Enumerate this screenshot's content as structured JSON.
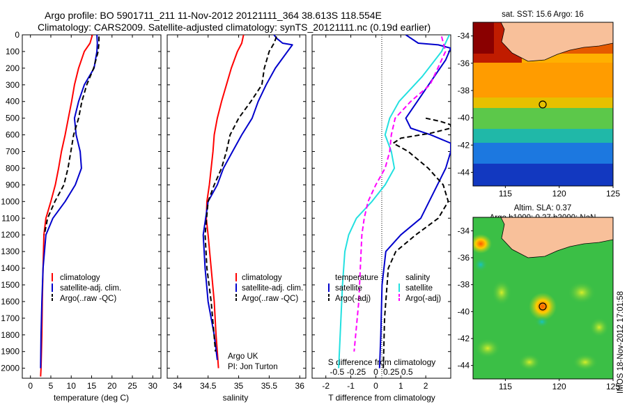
{
  "header": {
    "line1": "Argo profile: BO 5901711_211 11-Nov-2012 20121111_364 38.613S 118.554E",
    "line2": "Climatology: CARS2009. Satellite-adjusted climatology: synTS_20121111.nc (0.19d earlier)"
  },
  "colors": {
    "climatology": "#ff0000",
    "satellite": "#0000cc",
    "argo": "#000000",
    "sal_satellite": "#22e0e0",
    "sal_argo": "#ff00ff"
  },
  "depth_ticks": [
    "0",
    "100",
    "200",
    "300",
    "400",
    "500",
    "600",
    "700",
    "800",
    "900",
    "1000",
    "1100",
    "1200",
    "1300",
    "1400",
    "1500",
    "1600",
    "1700",
    "1800",
    "1900",
    "2000"
  ],
  "chart_data": [
    {
      "type": "line",
      "xlabel": "temperature (deg C)",
      "xticks": [
        "0",
        "5",
        "10",
        "15",
        "20",
        "25",
        "30"
      ],
      "xlim": [
        -2,
        32
      ],
      "ylim": [
        2060,
        0
      ],
      "legend": [
        "climatology",
        "satellite-adj. clim.",
        "Argo(..raw -QC)"
      ],
      "series": [
        {
          "name": "climatology",
          "x": [
            15.2,
            14.6,
            13.2,
            11.8,
            10.8,
            10.1,
            9.3,
            8.5,
            7.6,
            6.9,
            6.1,
            5.0,
            3.8,
            3.3,
            3.1,
            2.9,
            2.8,
            2.7,
            2.6,
            2.5
          ],
          "y": [
            0,
            50,
            100,
            200,
            300,
            400,
            500,
            600,
            700,
            800,
            900,
            1000,
            1100,
            1200,
            1400,
            1600,
            1800,
            1900,
            2000,
            2050
          ]
        },
        {
          "name": "satellite-adj. clim.",
          "x": [
            16.3,
            16.4,
            16.3,
            15.6,
            13.2,
            11.8,
            10.8,
            11.2,
            12.2,
            12.5,
            11.0,
            8.5,
            5.5,
            3.8,
            3.1,
            2.8,
            2.6,
            2.5
          ],
          "y": [
            0,
            50,
            100,
            200,
            300,
            400,
            500,
            600,
            700,
            800,
            900,
            1000,
            1100,
            1200,
            1400,
            1600,
            1800,
            2000
          ]
        },
        {
          "name": "Argo(..raw -QC)",
          "x": [
            16.8,
            16.8,
            16.6,
            15.5,
            13.8,
            12.6,
            11.8,
            10.6,
            9.9,
            9.2,
            8.2,
            6.0,
            4.2,
            3.4
          ],
          "y": [
            10,
            50,
            100,
            200,
            300,
            400,
            500,
            600,
            700,
            800,
            900,
            1000,
            1100,
            1200
          ]
        }
      ]
    },
    {
      "type": "line",
      "xlabel": "salinity",
      "xticks": [
        "34",
        "34.5",
        "35",
        "35.5",
        "36"
      ],
      "xlim": [
        33.83,
        36.1
      ],
      "ylim": [
        2060,
        0
      ],
      "legend": [
        "climatology",
        "satellite-adj. clim.",
        "Argo(..raw -QC)"
      ],
      "annotations": [
        "Argo UK",
        "PI: Jon Turton"
      ],
      "series": [
        {
          "name": "climatology",
          "x": [
            35.08,
            35.05,
            34.98,
            34.88,
            34.8,
            34.72,
            34.65,
            34.6,
            34.58,
            34.55,
            34.52,
            34.48,
            34.47,
            34.5,
            34.55,
            34.6,
            34.63,
            34.65,
            34.67
          ],
          "y": [
            0,
            50,
            100,
            200,
            300,
            400,
            500,
            600,
            700,
            800,
            900,
            1000,
            1100,
            1200,
            1400,
            1600,
            1800,
            1900,
            2000
          ]
        },
        {
          "name": "satellite-adj. clim.",
          "x": [
            35.58,
            35.62,
            35.72,
            35.88,
            35.8,
            35.6,
            35.45,
            35.32,
            35.22,
            35.05,
            34.9,
            34.75,
            34.65,
            34.5,
            34.42,
            34.45,
            34.5,
            34.6,
            34.65
          ],
          "y": [
            0,
            20,
            50,
            60,
            100,
            200,
            300,
            400,
            500,
            600,
            700,
            800,
            900,
            1000,
            1200,
            1400,
            1600,
            1800,
            1950
          ]
        },
        {
          "name": "Argo(..raw -QC)",
          "x": [
            35.62,
            35.58,
            35.5,
            35.42,
            35.38,
            35.2,
            35.0,
            34.86,
            34.8,
            34.72,
            34.6,
            34.5,
            34.45,
            34.48,
            34.55,
            34.62
          ],
          "y": [
            10,
            50,
            100,
            200,
            300,
            400,
            500,
            600,
            700,
            800,
            900,
            1000,
            1200,
            1400,
            1600,
            1900
          ]
        }
      ]
    },
    {
      "type": "line",
      "xlabel": "T difference from climatology",
      "xticks": [
        "-2",
        "-1",
        "0",
        "1",
        "2"
      ],
      "secondary_xlabel": "S difference from climatology",
      "secondary_xticks": [
        "-0.5",
        "-0.25",
        "0",
        "0.25",
        "0.5"
      ],
      "xlim": [
        -2.55,
        3.0
      ],
      "ylim": [
        2060,
        0
      ],
      "legend_left_title": "temperature",
      "legend_right_title": "salinity",
      "legend_left": [
        "satellite",
        "Argo(-adj)"
      ],
      "legend_right": [
        "satellite",
        "Argo(-adj)"
      ],
      "series": [
        {
          "name": "T satellite",
          "x": [
            1.2,
            1.7,
            2.5,
            3.0,
            2.8,
            1.2,
            1.4,
            2.2,
            3.0,
            3.0,
            2.8,
            1.8,
            1.0,
            0.4,
            0.25,
            0.2,
            0.15
          ],
          "y": [
            0,
            50,
            60,
            80,
            150,
            500,
            560,
            600,
            650,
            700,
            800,
            1100,
            1200,
            1300,
            1500,
            1800,
            2000
          ]
        },
        {
          "name": "T Argo(-adj)",
          "x": [
            2.0,
            2.6,
            3.0,
            3.0,
            2.2,
            1.0,
            0.7,
            1.3,
            2.1,
            2.7,
            2.9,
            2.5,
            1.6,
            0.8,
            0.5,
            0.35,
            0.3
          ],
          "y": [
            500,
            520,
            540,
            560,
            590,
            620,
            650,
            700,
            800,
            900,
            1000,
            1100,
            1200,
            1300,
            1400,
            1700,
            2000
          ]
        },
        {
          "name": "S satellite",
          "x": [
            0.95,
            0.85,
            0.6,
            0.3,
            0.18,
            0.12,
            0.2,
            0.24,
            0.12,
            -0.05,
            -0.25,
            -0.35,
            -0.4,
            -0.43,
            -0.45,
            -0.47,
            -0.48
          ],
          "y": [
            0,
            100,
            250,
            400,
            500,
            600,
            700,
            800,
            900,
            1000,
            1100,
            1200,
            1300,
            1500,
            1700,
            1900,
            2000
          ]
        },
        {
          "name": "S Argo(-adj)",
          "x": [
            0.85,
            0.9,
            0.8,
            0.7,
            0.45,
            0.25,
            0.2,
            0.18,
            0.12,
            0.0,
            -0.1,
            -0.15,
            -0.18,
            -0.2,
            -0.22,
            -0.28
          ],
          "y": [
            10,
            100,
            200,
            300,
            400,
            500,
            600,
            700,
            800,
            900,
            1000,
            1100,
            1200,
            1400,
            1600,
            1900
          ]
        }
      ]
    },
    {
      "type": "heatmap",
      "title": "sat. SST: 15.6 Argo: 16",
      "xticks": [
        "115",
        "120",
        "125"
      ],
      "yticks": [
        "-34",
        "-36",
        "-38",
        "-40",
        "-42",
        "-44"
      ],
      "xlim": [
        112,
        125
      ],
      "ylim": [
        -45,
        -33
      ],
      "marker": {
        "lon": 118.554,
        "lat": -38.613
      }
    },
    {
      "type": "heatmap",
      "title": "Altim. SLA: 0.37",
      "subtitle": "Argo h1000: 0.27 h2000: NaN",
      "xticks": [
        "115",
        "120",
        "125"
      ],
      "yticks": [
        "-34",
        "-36",
        "-38",
        "-40",
        "-42",
        "-44"
      ],
      "xlim": [
        112,
        125
      ],
      "ylim": [
        -45,
        -33
      ],
      "marker": {
        "lon": 118.554,
        "lat": -38.613
      }
    }
  ],
  "footer_note": "IMOS 18-Nov-2012 17:01:58"
}
